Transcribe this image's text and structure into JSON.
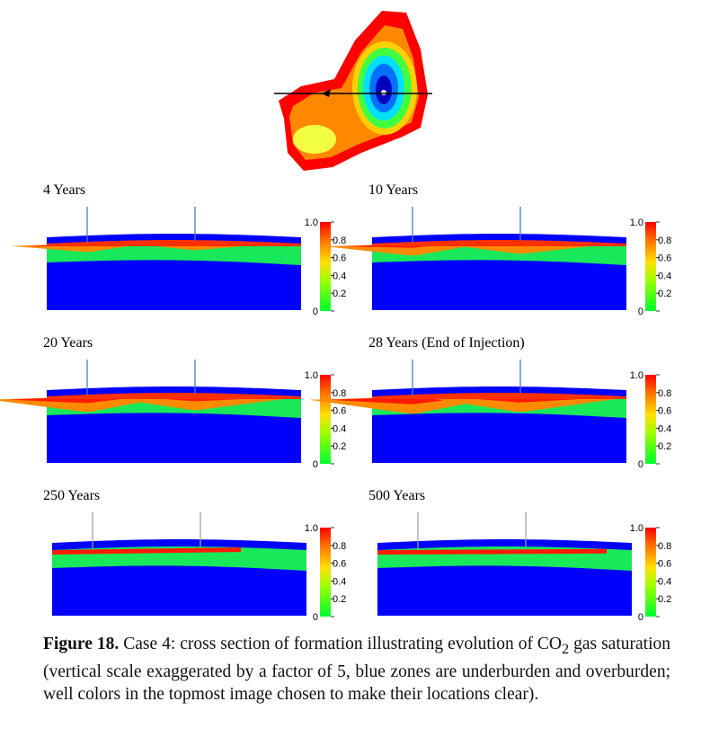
{
  "panels": [
    {
      "title": "4 Years"
    },
    {
      "title": "10 Years"
    },
    {
      "title": "20 Years"
    },
    {
      "title": "28 Years (End of Injection)"
    },
    {
      "title": "250 Years"
    },
    {
      "title": "500 Years"
    }
  ],
  "colorbar_ticks": [
    "1.0",
    "0.8",
    "0.6",
    "0.4",
    "0.2",
    "0"
  ],
  "caption": {
    "label": "Figure 18.",
    "text_1": " Case 4: cross section of formation illustrating evolution of CO",
    "subscript": "2",
    "text_2": " gas saturation (vertical scale exaggerated by a factor of 5, blue zones are underburden and overburden; well colors in the topmost image chosen to make their locations clear)."
  }
}
